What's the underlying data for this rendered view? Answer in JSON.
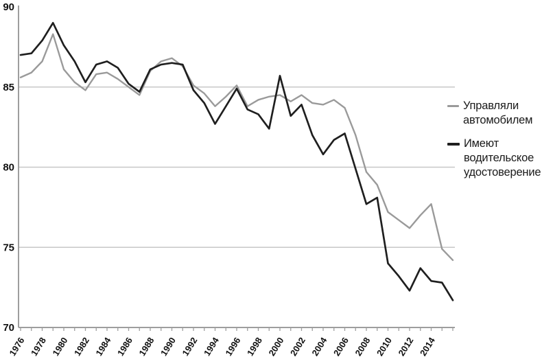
{
  "chart_data": {
    "type": "line",
    "title": "",
    "xlabel": "",
    "ylabel": "",
    "x": [
      1976,
      1977,
      1978,
      1979,
      1980,
      1981,
      1982,
      1983,
      1984,
      1985,
      1986,
      1987,
      1988,
      1989,
      1990,
      1991,
      1992,
      1993,
      1994,
      1995,
      1996,
      1997,
      1998,
      1999,
      2000,
      2001,
      2002,
      2003,
      2004,
      2005,
      2006,
      2007,
      2008,
      2009,
      2010,
      2011,
      2012,
      2013,
      2014,
      2015,
      2016
    ],
    "x_tick_labels": [
      "1976",
      "1978",
      "1980",
      "1982",
      "1984",
      "1986",
      "1988",
      "1990",
      "1992",
      "1994",
      "1996",
      "1998",
      "2000",
      "2002",
      "2004",
      "2006",
      "2008",
      "2010",
      "2012",
      "2014"
    ],
    "series": [
      {
        "name": "Управляли автомобилем",
        "color": "#9a9a9a",
        "values": [
          85.6,
          85.9,
          86.6,
          88.3,
          86.1,
          85.3,
          84.8,
          85.8,
          85.9,
          85.5,
          85.0,
          84.5,
          86.0,
          86.6,
          86.8,
          86.3,
          85.1,
          84.6,
          83.8,
          84.4,
          85.1,
          83.8,
          84.2,
          84.4,
          84.5,
          84.1,
          84.5,
          84.0,
          83.9,
          84.2,
          83.7,
          82.0,
          79.7,
          78.9,
          77.2,
          76.7,
          76.2,
          77.0,
          77.7,
          74.9,
          74.2
        ]
      },
      {
        "name": "Имеют водительское удостоверение",
        "color": "#1f1f1f",
        "values": [
          87.0,
          87.1,
          87.9,
          89.0,
          87.6,
          86.6,
          85.3,
          86.4,
          86.6,
          86.2,
          85.2,
          84.7,
          86.1,
          86.4,
          86.5,
          86.4,
          84.8,
          84.0,
          82.7,
          83.8,
          84.9,
          83.6,
          83.3,
          82.4,
          85.7,
          83.2,
          83.9,
          82.0,
          80.8,
          81.7,
          82.1,
          79.9,
          77.7,
          78.1,
          74.0,
          73.2,
          72.3,
          73.7,
          72.9,
          72.8,
          71.7
        ]
      }
    ],
    "ylim": [
      70,
      90
    ],
    "yticks": [
      70,
      75,
      80,
      85,
      90
    ],
    "gridlines": [
      75,
      80,
      85
    ],
    "grid": true,
    "legend_position": "right"
  },
  "legend": {
    "items": [
      {
        "label": "Управляли автомобилем",
        "lines": [
          "Управляли",
          "автомобилем"
        ],
        "color": "#9a9a9a"
      },
      {
        "label": "Имеют водительское удостоверение",
        "lines": [
          "Имеют",
          "водительское",
          "удостоверение"
        ],
        "color": "#1f1f1f"
      }
    ]
  },
  "colors": {
    "background": "#ffffff",
    "grid": "#c7c7c7",
    "axis": "#9e9e9e",
    "label_text": "#111111",
    "legend_text": "#1a1a1a"
  }
}
